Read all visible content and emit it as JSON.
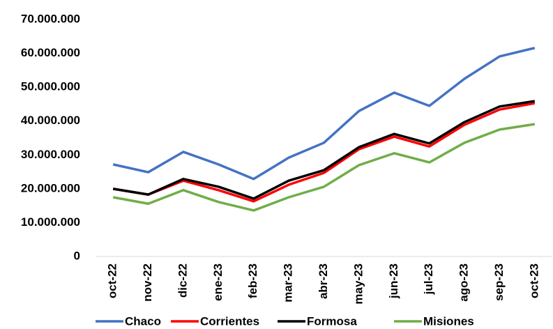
{
  "chart_data": {
    "type": "line",
    "categories": [
      "oct-22",
      "nov-22",
      "dic-22",
      "ene-23",
      "feb-23",
      "mar-23",
      "abr-23",
      "may-23",
      "jun-23",
      "jul-23",
      "ago-23",
      "sep-23",
      "oct-23"
    ],
    "series": [
      {
        "name": "Chaco",
        "color": "#4472c4",
        "values": [
          27200000,
          24900000,
          30900000,
          27200000,
          22900000,
          29200000,
          33600000,
          43000000,
          48400000,
          44500000,
          52500000,
          59100000,
          61600000
        ]
      },
      {
        "name": "Corrientes",
        "color": "#ff0000",
        "values": [
          20000000,
          18300000,
          22400000,
          19600000,
          16300000,
          21200000,
          24700000,
          31700000,
          35400000,
          32500000,
          38900000,
          43400000,
          45300000
        ]
      },
      {
        "name": "Formosa",
        "color": "#000000",
        "values": [
          20000000,
          18300000,
          22900000,
          20600000,
          17100000,
          22400000,
          25500000,
          32300000,
          36200000,
          33400000,
          39700000,
          44300000,
          45900000
        ]
      },
      {
        "name": "Misiones",
        "color": "#70ad47",
        "values": [
          17500000,
          15600000,
          19600000,
          16100000,
          13600000,
          17500000,
          20600000,
          27000000,
          30500000,
          27800000,
          33600000,
          37500000,
          39100000
        ]
      }
    ],
    "ylim": [
      0,
      70000000
    ],
    "yticks": [
      0,
      {
        "value": 10000000,
        "label": "10.000.000"
      },
      {
        "value": 20000000,
        "label": "20.000.000"
      },
      {
        "value": 30000000,
        "label": "30.000.000"
      },
      {
        "value": 40000000,
        "label": "40.000.000"
      },
      {
        "value": 50000000,
        "label": "50.000.000"
      },
      {
        "value": 60000000,
        "label": "60.000.000"
      },
      {
        "value": 70000000,
        "label": "70.000.000"
      }
    ],
    "grid": false,
    "legend": "bottom"
  }
}
